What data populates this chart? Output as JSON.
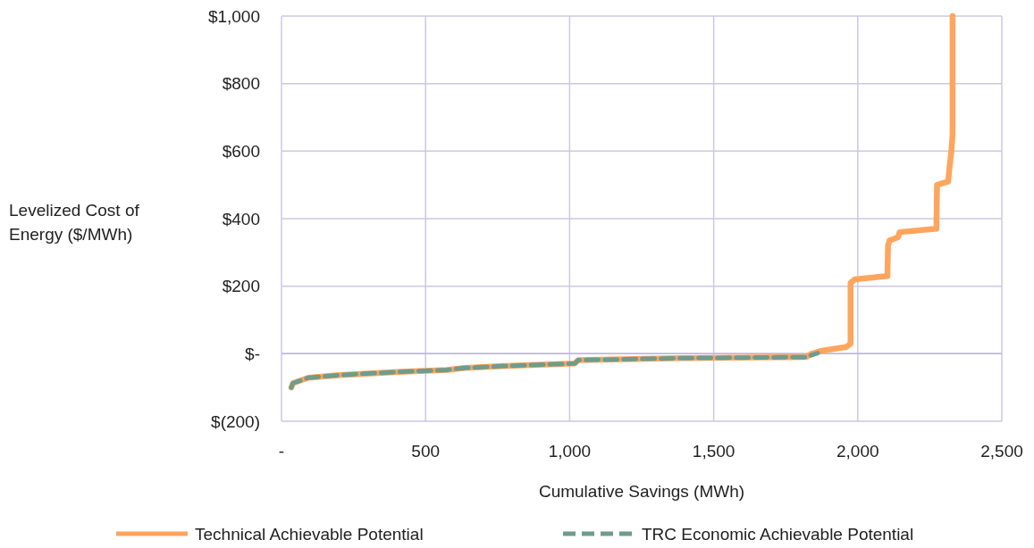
{
  "chart_data": {
    "type": "line",
    "xlabel": "Cumulative Savings (MWh)",
    "ylabel": "Levelized Cost of Energy ($/MWh)",
    "xlim": [
      0,
      2500
    ],
    "xticks": [
      {
        "value": 0,
        "label": "-"
      },
      {
        "value": 500,
        "label": "500"
      },
      {
        "value": 1000,
        "label": "1,000"
      },
      {
        "value": 1500,
        "label": "1,500"
      },
      {
        "value": 2000,
        "label": "2,000"
      },
      {
        "value": 2500,
        "label": "2,500"
      }
    ],
    "ylim": [
      -200,
      1000
    ],
    "yticks": [
      {
        "value": -200,
        "label": "$(200)"
      },
      {
        "value": 0,
        "label": "$-"
      },
      {
        "value": 200,
        "label": "$200"
      },
      {
        "value": 400,
        "label": "$400"
      },
      {
        "value": 600,
        "label": "$600"
      },
      {
        "value": 800,
        "label": "$800"
      },
      {
        "value": 1000,
        "label": "$1,000"
      }
    ],
    "grid": true,
    "legend": "bottom",
    "series": [
      {
        "name": "Technical Achievable Potential",
        "color": "#ffa55d",
        "line_style": "solid",
        "x": [
          34,
          40,
          93,
          202,
          419,
          574,
          636,
          760,
          1017,
          1030,
          1380,
          1820,
          1840,
          1870,
          1960,
          1975,
          1975,
          1990,
          2103,
          2105,
          2110,
          2140,
          2145,
          2273,
          2275,
          2314,
          2318,
          2325,
          2329,
          2329
        ],
        "values": [
          -100,
          -87,
          -71,
          -63,
          -53,
          -48,
          -42,
          -37,
          -29,
          -19,
          -13,
          -10,
          0,
          8,
          20,
          30,
          210,
          220,
          230,
          320,
          335,
          345,
          360,
          370,
          500,
          510,
          550,
          600,
          650,
          1000
        ]
      },
      {
        "name": "TRC Economic Achievable Potential",
        "color": "#6f9c8c",
        "line_style": "dashed",
        "x": [
          34,
          40,
          93,
          202,
          419,
          574,
          636,
          760,
          1017,
          1030,
          1380,
          1820,
          1861
        ],
        "values": [
          -100,
          -87,
          -71,
          -63,
          -53,
          -48,
          -42,
          -37,
          -29,
          -19,
          -13,
          -10,
          2
        ]
      }
    ]
  }
}
